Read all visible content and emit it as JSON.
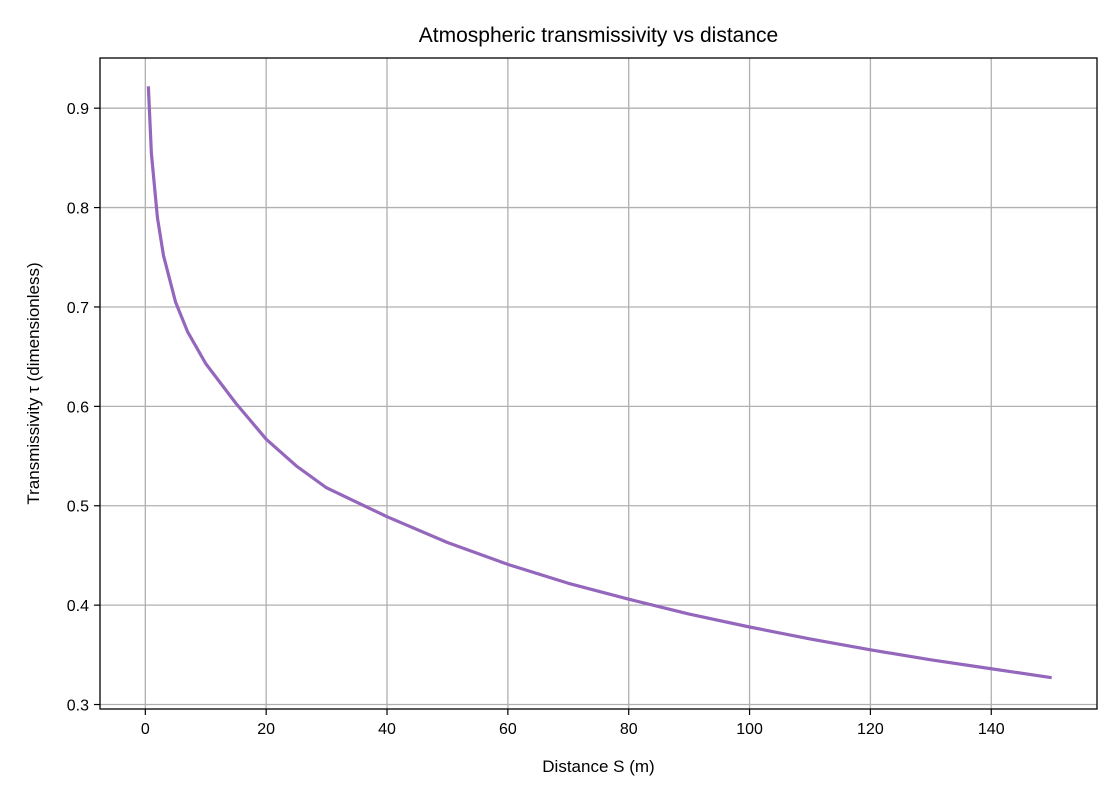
{
  "chart_data": {
    "type": "line",
    "title": "Atmospheric transmissivity vs distance",
    "xlabel": "Distance S (m)",
    "ylabel": "Transmissivity τ (dimensionless)",
    "xlim": [
      -7.5,
      157.5
    ],
    "ylim": [
      0.2955,
      0.9505
    ],
    "xticks": [
      0,
      20,
      40,
      60,
      80,
      100,
      120,
      140
    ],
    "xtick_labels": [
      "0",
      "20",
      "40",
      "60",
      "80",
      "100",
      "120",
      "140"
    ],
    "yticks": [
      0.3,
      0.4,
      0.5,
      0.6,
      0.7,
      0.8,
      0.9
    ],
    "ytick_labels": [
      "0.3",
      "0.4",
      "0.5",
      "0.6",
      "0.7",
      "0.8",
      "0.9"
    ],
    "grid": true,
    "series": [
      {
        "color": "#9467bd",
        "x": [
          0.5,
          1,
          2,
          3,
          5,
          7,
          10,
          15,
          20,
          25,
          30,
          40,
          50,
          60,
          70,
          80,
          90,
          100,
          110,
          120,
          130,
          140,
          150
        ],
        "y": [
          0.922,
          0.855,
          0.79,
          0.752,
          0.705,
          0.675,
          0.643,
          0.603,
          0.567,
          0.54,
          0.518,
          0.489,
          0.463,
          0.441,
          0.422,
          0.406,
          0.391,
          0.378,
          0.366,
          0.355,
          0.345,
          0.336,
          0.327
        ]
      }
    ]
  }
}
